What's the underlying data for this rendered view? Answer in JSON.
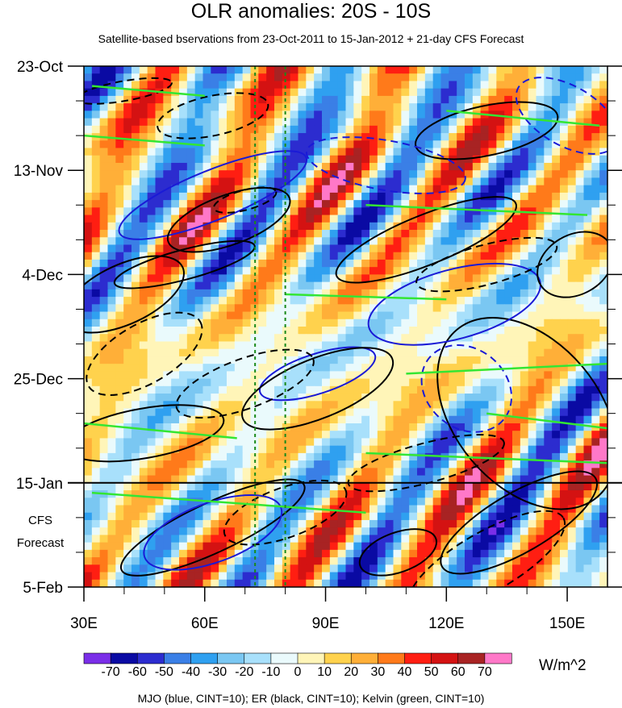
{
  "chart_data": {
    "type": "heatmap",
    "title": "OLR anomalies: 20S - 10S",
    "subtitle": "Satellite-based bservations from 23-Oct-2011 to 15-Jan-2012 + 21-day CFS Forecast",
    "x_ticks": [
      {
        "value": 30,
        "label": "30E"
      },
      {
        "value": 60,
        "label": "60E"
      },
      {
        "value": 90,
        "label": "90E"
      },
      {
        "value": 120,
        "label": "120E"
      },
      {
        "value": 150,
        "label": "150E"
      }
    ],
    "xlim": [
      30,
      160
    ],
    "y_ticks": [
      {
        "value": 0,
        "label": "23-Oct"
      },
      {
        "value": 21,
        "label": "13-Nov"
      },
      {
        "value": 42,
        "label": "4-Dec"
      },
      {
        "value": 63,
        "label": "25-Dec"
      },
      {
        "value": 84,
        "label": "15-Jan"
      },
      {
        "value": 105,
        "label": "5-Feb"
      }
    ],
    "ylim_days": [
      0,
      105
    ],
    "observation_end_day": 84,
    "forecast_label": [
      "CFS",
      "Forecast"
    ],
    "reference_lines_lon": [
      72.5,
      80
    ],
    "colorbar": {
      "levels": [
        "-70",
        "-60",
        "-50",
        "-40",
        "-30",
        "-20",
        "-10",
        "0",
        "10",
        "20",
        "30",
        "40",
        "50",
        "60",
        "70"
      ],
      "colors": [
        "#7a2ee8",
        "#0a0aa3",
        "#2c2ccf",
        "#3a7fe6",
        "#2fa0f0",
        "#7ac7f2",
        "#a8e0fb",
        "#eafafc",
        "#fff5b8",
        "#ffd24d",
        "#ffaf38",
        "#ff7a1a",
        "#ff1e12",
        "#d41212",
        "#a82323",
        "#ff78c8"
      ],
      "units": "W/m^2"
    },
    "footnote": "MJO (blue, CINT=10); ER (black, CINT=10); Kelvin (green, CINT=10)",
    "series": [
      {
        "color": "#1a1ad6"
      },
      {
        "color": "#000000"
      },
      {
        "color": "#33e633"
      }
    ]
  }
}
